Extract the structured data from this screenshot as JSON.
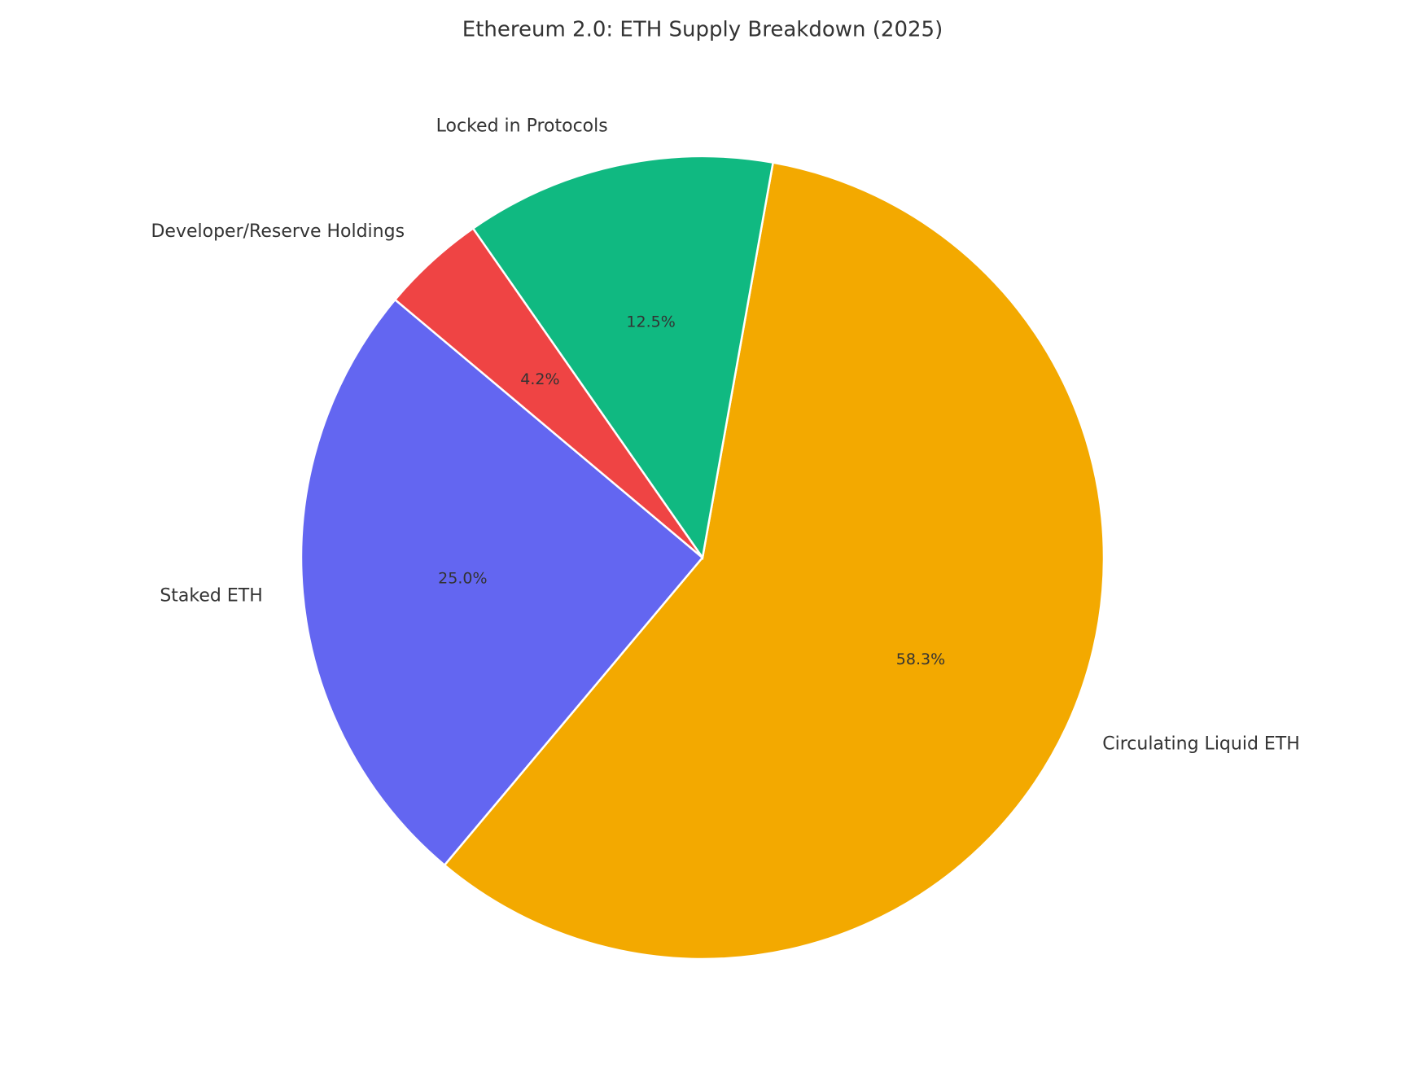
{
  "chart_data": {
    "type": "pie",
    "title": "Ethereum 2.0: ETH Supply Breakdown (2025)",
    "categories": [
      "Staked ETH",
      "Circulating Liquid ETH",
      "Locked in Protocols",
      "Developer/Reserve Holdings"
    ],
    "values": [
      25.0,
      58.3,
      12.5,
      4.2
    ],
    "value_labels": [
      "25.0%",
      "58.3%",
      "12.5%",
      "4.2%"
    ],
    "colors": [
      "#6366f1",
      "#f3a900",
      "#10b981",
      "#ef4444"
    ],
    "start_angle": 140
  }
}
